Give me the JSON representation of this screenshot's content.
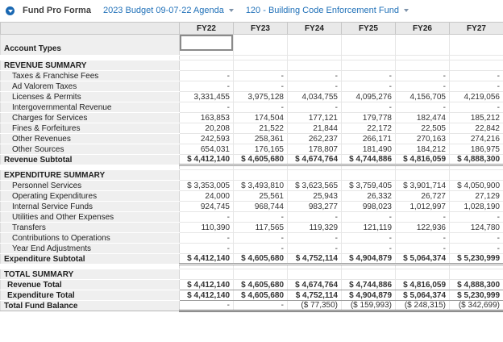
{
  "header": {
    "title": "Fund Pro Forma",
    "budget_dropdown": "2023 Budget 09-07-22 Agenda",
    "fund_dropdown": "120 - Building Code Enforcement Fund"
  },
  "colors": {
    "link_blue": "#2272b9",
    "icon_blue": "#1a68b2",
    "header_bg": "#e9e9e9",
    "label_column_bg": "#efefef",
    "rule_gray": "#9b9b9b"
  },
  "table": {
    "years": [
      "FY22",
      "FY23",
      "FY24",
      "FY25",
      "FY26",
      "FY27"
    ],
    "rows": [
      {
        "type": "account-types",
        "label": "Account Types",
        "selected_col": 0,
        "values": [
          "",
          "",
          "",
          "",
          "",
          ""
        ]
      },
      {
        "type": "spacer"
      },
      {
        "type": "section",
        "label": "REVENUE SUMMARY"
      },
      {
        "type": "item",
        "label": "Taxes & Franchise Fees",
        "values": [
          "-",
          "-",
          "-",
          "-",
          "-",
          "-"
        ]
      },
      {
        "type": "item",
        "label": "Ad Valorem Taxes",
        "values": [
          "-",
          "-",
          "-",
          "-",
          "-",
          "-"
        ]
      },
      {
        "type": "item",
        "label": "Licenses & Permits",
        "values": [
          "3,331,455",
          "3,975,128",
          "4,034,755",
          "4,095,276",
          "4,156,705",
          "4,219,056"
        ]
      },
      {
        "type": "item",
        "label": "Intergovernmental Revenue",
        "values": [
          "-",
          "-",
          "-",
          "-",
          "-",
          "-"
        ]
      },
      {
        "type": "item",
        "label": "Charges for Services",
        "values": [
          "163,853",
          "174,504",
          "177,121",
          "179,778",
          "182,474",
          "185,212"
        ]
      },
      {
        "type": "item",
        "label": "Fines & Forfeitures",
        "values": [
          "20,208",
          "21,522",
          "21,844",
          "22,172",
          "22,505",
          "22,842"
        ]
      },
      {
        "type": "item",
        "label": "Other Revenues",
        "values": [
          "242,593",
          "258,361",
          "262,237",
          "266,171",
          "270,163",
          "274,216"
        ]
      },
      {
        "type": "item",
        "label": "Other Sources",
        "values": [
          "654,031",
          "176,165",
          "178,807",
          "181,490",
          "184,212",
          "186,975"
        ]
      },
      {
        "type": "subtotal",
        "label": "Revenue Subtotal",
        "values": [
          "$ 4,412,140",
          "$ 4,605,680",
          "$ 4,674,764",
          "$ 4,744,886",
          "$ 4,816,059",
          "$ 4,888,300"
        ]
      },
      {
        "type": "spacer"
      },
      {
        "type": "section",
        "label": "EXPENDITURE SUMMARY"
      },
      {
        "type": "item",
        "label": "Personnel Services",
        "values": [
          "$ 3,353,005",
          "$ 3,493,810",
          "$ 3,623,565",
          "$ 3,759,405",
          "$ 3,901,714",
          "$ 4,050,900"
        ]
      },
      {
        "type": "item",
        "label": "Operating Expenditures",
        "values": [
          "24,000",
          "25,561",
          "25,943",
          "26,332",
          "26,727",
          "27,129"
        ]
      },
      {
        "type": "item",
        "label": "Internal Service Funds",
        "values": [
          "924,745",
          "968,744",
          "983,277",
          "998,023",
          "1,012,997",
          "1,028,190"
        ]
      },
      {
        "type": "item",
        "label": "Utilities and Other Expenses",
        "values": [
          "-",
          "-",
          "-",
          "-",
          "-",
          "-"
        ]
      },
      {
        "type": "item",
        "label": "Transfers",
        "values": [
          "110,390",
          "117,565",
          "119,329",
          "121,119",
          "122,936",
          "124,780"
        ]
      },
      {
        "type": "item",
        "label": "Contributions to Operations",
        "values": [
          "-",
          "-",
          "-",
          "-",
          "-",
          "-"
        ]
      },
      {
        "type": "item",
        "label": "Year End Adjustments",
        "values": [
          "-",
          "-",
          "-",
          "-",
          "-",
          "-"
        ]
      },
      {
        "type": "subtotal",
        "label": "Expenditure Subtotal",
        "values": [
          "$ 4,412,140",
          "$ 4,605,680",
          "$ 4,752,114",
          "$ 4,904,879",
          "$ 5,064,374",
          "$ 5,230,999"
        ]
      },
      {
        "type": "spacer"
      },
      {
        "type": "section",
        "label": "TOTAL SUMMARY"
      },
      {
        "type": "total",
        "label": "Revenue Total",
        "values": [
          "$ 4,412,140",
          "$ 4,605,680",
          "$ 4,674,764",
          "$ 4,744,886",
          "$ 4,816,059",
          "$ 4,888,300"
        ]
      },
      {
        "type": "total",
        "label": "Expenditure Total",
        "values": [
          "$ 4,412,140",
          "$ 4,605,680",
          "$ 4,752,114",
          "$ 4,904,879",
          "$ 5,064,374",
          "$ 5,230,999"
        ]
      },
      {
        "type": "grand-total",
        "label": "Total Fund Balance",
        "values": [
          "-",
          "-",
          "($ 77,350)",
          "($ 159,993)",
          "($ 248,315)",
          "($ 342,699)"
        ]
      }
    ]
  }
}
